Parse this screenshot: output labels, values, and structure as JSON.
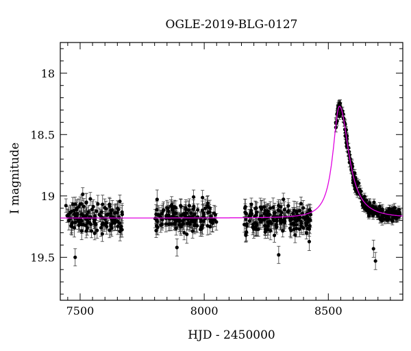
{
  "chart_data": {
    "type": "scatter",
    "title": "OGLE-2019-BLG-0127",
    "xlabel": "HJD - 2450000",
    "ylabel": "I magnitude",
    "xlim": [
      7420,
      8800
    ],
    "ylim": [
      19.85,
      17.75
    ],
    "y_inverted": true,
    "x_ticks": [
      7500,
      8000,
      8500
    ],
    "y_ticks": [
      18,
      18.5,
      19,
      19.5
    ],
    "grid": false,
    "legend": "none",
    "colors": {
      "points": "#000000",
      "model": "#e000e0",
      "axes": "#000000"
    },
    "model_curve": {
      "baseline_mag": 19.18,
      "peak_time": 8545,
      "peak_mag": 18.27,
      "rise_tau": 32,
      "decay_tau": 45
    },
    "observations": {
      "segments": [
        {
          "x_range": [
            7440,
            7670
          ],
          "count": 140,
          "mean_mag": 19.17,
          "scatter": 0.09,
          "err": 0.06
        },
        {
          "x_range": [
            7800,
            8050
          ],
          "count": 150,
          "mean_mag": 19.17,
          "scatter": 0.08,
          "err": 0.06
        },
        {
          "x_range": [
            8160,
            8430
          ],
          "count": 170,
          "mean_mag": 19.19,
          "scatter": 0.09,
          "err": 0.06
        },
        {
          "x_range": [
            8530,
            8790
          ],
          "count": 260,
          "follow_model": true,
          "scatter": 0.04,
          "err": 0.03
        }
      ],
      "outliers": [
        {
          "x": 8690,
          "y": 19.53
        },
        {
          "x": 8682,
          "y": 19.43
        },
        {
          "x": 7480,
          "y": 19.5
        },
        {
          "x": 8300,
          "y": 19.48
        },
        {
          "x": 7890,
          "y": 19.42
        }
      ]
    }
  }
}
